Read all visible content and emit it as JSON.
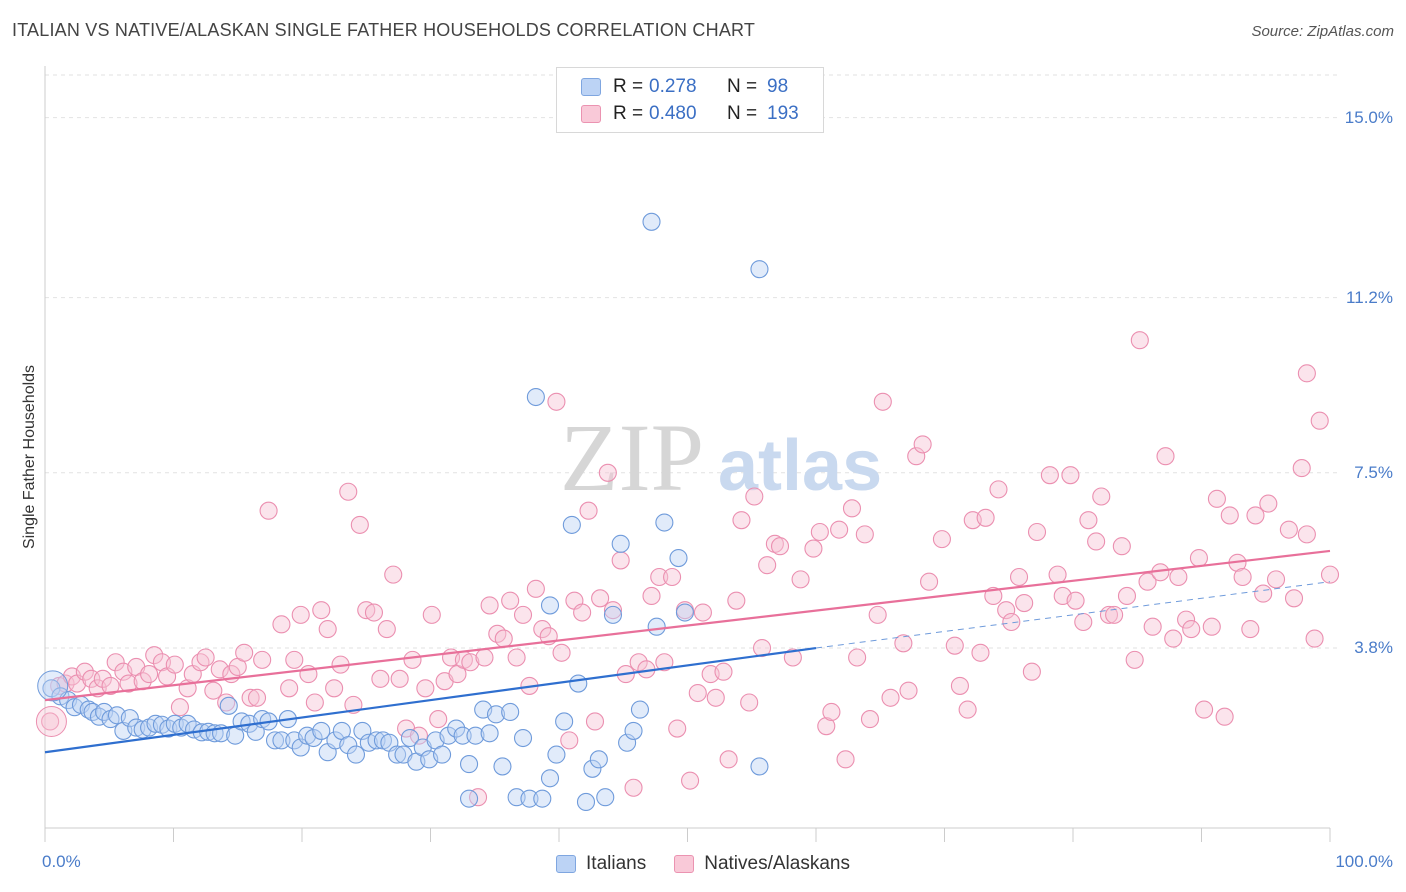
{
  "title": "ITALIAN VS NATIVE/ALASKAN SINGLE FATHER HOUSEHOLDS CORRELATION CHART",
  "source": "Source: ZipAtlas.com",
  "watermark": {
    "zip": "ZIP",
    "atlas": "atlas"
  },
  "stats": {
    "italians": {
      "r_label": "R =",
      "r": "0.278",
      "n_label": "N =",
      "n": "98"
    },
    "natives": {
      "r_label": "R =",
      "r": "0.480",
      "n_label": "N =",
      "n": "193"
    }
  },
  "legend": {
    "italians": "Italians",
    "natives": "Natives/Alaskans"
  },
  "colors": {
    "italians": "#5b8fd9",
    "natives": "#eb7aa1",
    "tick_label": "#4a7cc9"
  },
  "chart_data": {
    "type": "scatter",
    "title": "ITALIAN VS NATIVE/ALASKAN SINGLE FATHER HOUSEHOLDS CORRELATION CHART",
    "xlabel": "",
    "ylabel": "Single Father Households",
    "xlim": [
      0,
      100
    ],
    "ylim": [
      0,
      15.9
    ],
    "x_tick_labels": [
      "0.0%",
      "100.0%"
    ],
    "y_ticks": [
      3.8,
      7.5,
      11.2,
      15.0
    ],
    "y_tick_labels": [
      "3.8%",
      "7.5%",
      "11.2%",
      "15.0%"
    ],
    "grid": true,
    "legend_position": "bottom-center",
    "series": [
      {
        "name": "Italians",
        "color": "#5b8fd9",
        "trend": {
          "x": [
            0,
            60
          ],
          "y": [
            1.6,
            3.8
          ]
        },
        "trend_extension": {
          "x": [
            60,
            100
          ],
          "y": [
            3.8,
            5.2
          ]
        },
        "points": [
          [
            0.5,
            2.95
          ],
          [
            1.2,
            2.78
          ],
          [
            1.8,
            2.7
          ],
          [
            2.3,
            2.55
          ],
          [
            2.8,
            2.6
          ],
          [
            3.4,
            2.5
          ],
          [
            3.7,
            2.45
          ],
          [
            4.2,
            2.35
          ],
          [
            4.6,
            2.45
          ],
          [
            5.1,
            2.3
          ],
          [
            5.6,
            2.38
          ],
          [
            6.1,
            2.05
          ],
          [
            6.6,
            2.32
          ],
          [
            7.1,
            2.12
          ],
          [
            7.6,
            2.08
          ],
          [
            8.1,
            2.12
          ],
          [
            8.6,
            2.2
          ],
          [
            9.1,
            2.18
          ],
          [
            9.6,
            2.1
          ],
          [
            10.1,
            2.2
          ],
          [
            10.6,
            2.12
          ],
          [
            11.1,
            2.2
          ],
          [
            11.6,
            2.08
          ],
          [
            12.2,
            2.02
          ],
          [
            12.7,
            2.03
          ],
          [
            13.2,
            2.0
          ],
          [
            13.7,
            2.0
          ],
          [
            14.3,
            2.58
          ],
          [
            14.8,
            1.95
          ],
          [
            15.3,
            2.25
          ],
          [
            15.9,
            2.2
          ],
          [
            16.4,
            2.03
          ],
          [
            16.9,
            2.3
          ],
          [
            17.4,
            2.25
          ],
          [
            17.9,
            1.85
          ],
          [
            18.4,
            1.85
          ],
          [
            18.9,
            2.3
          ],
          [
            19.4,
            1.85
          ],
          [
            19.9,
            1.7
          ],
          [
            20.4,
            1.95
          ],
          [
            20.9,
            1.9
          ],
          [
            21.5,
            2.05
          ],
          [
            22.0,
            1.6
          ],
          [
            22.6,
            1.85
          ],
          [
            23.1,
            2.05
          ],
          [
            23.6,
            1.75
          ],
          [
            24.2,
            1.55
          ],
          [
            24.7,
            2.05
          ],
          [
            25.2,
            1.8
          ],
          [
            25.8,
            1.85
          ],
          [
            26.3,
            1.85
          ],
          [
            26.8,
            1.8
          ],
          [
            27.4,
            1.55
          ],
          [
            27.9,
            1.55
          ],
          [
            28.4,
            1.9
          ],
          [
            28.9,
            1.4
          ],
          [
            29.4,
            1.7
          ],
          [
            29.9,
            1.45
          ],
          [
            30.4,
            1.85
          ],
          [
            30.9,
            1.55
          ],
          [
            31.4,
            1.95
          ],
          [
            32.0,
            2.1
          ],
          [
            32.5,
            1.95
          ],
          [
            33.0,
            0.62
          ],
          [
            33.0,
            1.35
          ],
          [
            33.5,
            1.95
          ],
          [
            34.1,
            2.5
          ],
          [
            34.6,
            2.0
          ],
          [
            35.1,
            2.4
          ],
          [
            35.6,
            1.3
          ],
          [
            36.2,
            2.45
          ],
          [
            36.7,
            0.65
          ],
          [
            37.2,
            1.9
          ],
          [
            37.7,
            0.62
          ],
          [
            38.2,
            9.1
          ],
          [
            38.7,
            0.62
          ],
          [
            39.3,
            4.7
          ],
          [
            39.3,
            1.05
          ],
          [
            39.8,
            1.55
          ],
          [
            40.4,
            2.25
          ],
          [
            41.0,
            6.4
          ],
          [
            41.5,
            3.05
          ],
          [
            42.1,
            0.55
          ],
          [
            42.6,
            1.25
          ],
          [
            43.1,
            1.45
          ],
          [
            43.6,
            0.65
          ],
          [
            44.2,
            4.5
          ],
          [
            44.8,
            6.0
          ],
          [
            45.3,
            1.8
          ],
          [
            45.8,
            2.05
          ],
          [
            46.3,
            2.5
          ],
          [
            47.2,
            12.8
          ],
          [
            47.6,
            4.25
          ],
          [
            48.2,
            6.45
          ],
          [
            49.3,
            5.7
          ],
          [
            49.8,
            4.55
          ],
          [
            55.6,
            11.8
          ],
          [
            55.6,
            1.3
          ]
        ],
        "big_point": [
          0.6,
          3.0
        ]
      },
      {
        "name": "Natives/Alaskans",
        "color": "#eb7aa1",
        "trend": {
          "x": [
            0,
            100
          ],
          "y": [
            2.7,
            5.85
          ]
        },
        "points": [
          [
            0.4,
            2.25
          ],
          [
            1.1,
            3.0
          ],
          [
            1.6,
            3.05
          ],
          [
            2.1,
            3.2
          ],
          [
            2.5,
            3.05
          ],
          [
            3.1,
            3.3
          ],
          [
            3.6,
            3.15
          ],
          [
            4.1,
            2.95
          ],
          [
            4.5,
            3.15
          ],
          [
            5.1,
            3.0
          ],
          [
            5.5,
            3.5
          ],
          [
            6.1,
            3.3
          ],
          [
            6.5,
            3.05
          ],
          [
            7.1,
            3.4
          ],
          [
            7.6,
            3.1
          ],
          [
            8.1,
            3.25
          ],
          [
            8.5,
            3.65
          ],
          [
            9.1,
            3.5
          ],
          [
            9.5,
            3.2
          ],
          [
            10.1,
            3.45
          ],
          [
            10.5,
            2.55
          ],
          [
            11.1,
            2.95
          ],
          [
            11.5,
            3.25
          ],
          [
            12.1,
            3.5
          ],
          [
            12.5,
            3.6
          ],
          [
            13.1,
            2.9
          ],
          [
            13.6,
            3.35
          ],
          [
            14.1,
            2.65
          ],
          [
            14.5,
            3.25
          ],
          [
            15.0,
            3.4
          ],
          [
            15.5,
            3.7
          ],
          [
            16.0,
            2.75
          ],
          [
            16.5,
            2.75
          ],
          [
            16.9,
            3.55
          ],
          [
            17.4,
            6.7
          ],
          [
            18.4,
            4.3
          ],
          [
            19.0,
            2.95
          ],
          [
            19.4,
            3.55
          ],
          [
            19.9,
            4.5
          ],
          [
            20.5,
            3.25
          ],
          [
            21.0,
            2.65
          ],
          [
            21.5,
            4.6
          ],
          [
            22.0,
            4.2
          ],
          [
            22.5,
            2.95
          ],
          [
            23.0,
            3.45
          ],
          [
            23.6,
            7.1
          ],
          [
            24.0,
            2.6
          ],
          [
            24.5,
            6.4
          ],
          [
            25.0,
            4.6
          ],
          [
            25.6,
            4.55
          ],
          [
            26.1,
            3.15
          ],
          [
            26.6,
            4.2
          ],
          [
            27.1,
            5.35
          ],
          [
            27.6,
            3.15
          ],
          [
            28.1,
            2.1
          ],
          [
            28.6,
            3.55
          ],
          [
            29.1,
            1.95
          ],
          [
            29.6,
            2.95
          ],
          [
            30.1,
            4.5
          ],
          [
            30.6,
            2.3
          ],
          [
            31.1,
            3.1
          ],
          [
            31.6,
            3.6
          ],
          [
            32.1,
            3.25
          ],
          [
            32.6,
            3.55
          ],
          [
            33.1,
            3.5
          ],
          [
            33.7,
            0.65
          ],
          [
            34.2,
            3.6
          ],
          [
            34.6,
            4.7
          ],
          [
            35.2,
            4.1
          ],
          [
            35.7,
            4.0
          ],
          [
            36.2,
            4.8
          ],
          [
            36.7,
            3.6
          ],
          [
            37.2,
            4.5
          ],
          [
            37.7,
            3.0
          ],
          [
            38.2,
            5.05
          ],
          [
            38.7,
            4.2
          ],
          [
            39.2,
            4.05
          ],
          [
            39.8,
            9.0
          ],
          [
            40.2,
            3.7
          ],
          [
            40.8,
            1.85
          ],
          [
            41.2,
            4.8
          ],
          [
            41.8,
            4.55
          ],
          [
            42.3,
            6.7
          ],
          [
            42.8,
            2.25
          ],
          [
            43.2,
            4.85
          ],
          [
            43.8,
            7.5
          ],
          [
            44.2,
            4.6
          ],
          [
            44.8,
            5.65
          ],
          [
            45.2,
            3.25
          ],
          [
            45.8,
            0.85
          ],
          [
            46.2,
            3.5
          ],
          [
            46.8,
            3.35
          ],
          [
            47.2,
            4.9
          ],
          [
            47.8,
            5.3
          ],
          [
            48.2,
            3.5
          ],
          [
            48.8,
            5.3
          ],
          [
            49.2,
            2.1
          ],
          [
            49.8,
            4.6
          ],
          [
            50.2,
            1.0
          ],
          [
            50.8,
            2.85
          ],
          [
            51.2,
            4.55
          ],
          [
            51.8,
            3.25
          ],
          [
            52.2,
            2.75
          ],
          [
            52.8,
            3.3
          ],
          [
            53.2,
            1.45
          ],
          [
            53.8,
            4.8
          ],
          [
            54.2,
            6.5
          ],
          [
            54.8,
            2.65
          ],
          [
            55.2,
            7.0
          ],
          [
            55.8,
            3.8
          ],
          [
            56.2,
            5.55
          ],
          [
            56.8,
            6.0
          ],
          [
            57.2,
            5.95
          ],
          [
            58.2,
            3.6
          ],
          [
            58.8,
            5.25
          ],
          [
            59.8,
            5.9
          ],
          [
            60.3,
            6.25
          ],
          [
            60.8,
            2.15
          ],
          [
            61.2,
            2.45
          ],
          [
            61.8,
            6.3
          ],
          [
            62.3,
            1.45
          ],
          [
            62.8,
            6.75
          ],
          [
            63.2,
            3.6
          ],
          [
            63.8,
            6.2
          ],
          [
            64.2,
            2.3
          ],
          [
            64.8,
            4.5
          ],
          [
            65.2,
            9.0
          ],
          [
            65.8,
            2.75
          ],
          [
            66.8,
            3.9
          ],
          [
            67.2,
            2.9
          ],
          [
            67.8,
            7.85
          ],
          [
            68.3,
            8.1
          ],
          [
            68.8,
            5.2
          ],
          [
            69.8,
            6.1
          ],
          [
            70.8,
            3.85
          ],
          [
            71.2,
            3.0
          ],
          [
            71.8,
            2.5
          ],
          [
            72.2,
            6.5
          ],
          [
            72.8,
            3.7
          ],
          [
            73.2,
            6.55
          ],
          [
            73.8,
            4.9
          ],
          [
            74.2,
            7.15
          ],
          [
            74.8,
            4.6
          ],
          [
            75.2,
            4.35
          ],
          [
            75.8,
            5.3
          ],
          [
            76.2,
            4.75
          ],
          [
            76.8,
            3.3
          ],
          [
            77.2,
            6.25
          ],
          [
            78.2,
            7.45
          ],
          [
            78.8,
            5.35
          ],
          [
            79.2,
            4.9
          ],
          [
            79.8,
            7.45
          ],
          [
            80.2,
            4.8
          ],
          [
            80.8,
            4.35
          ],
          [
            81.2,
            6.5
          ],
          [
            81.8,
            6.05
          ],
          [
            82.2,
            7.0
          ],
          [
            82.8,
            4.5
          ],
          [
            83.2,
            4.5
          ],
          [
            83.8,
            5.95
          ],
          [
            84.2,
            4.9
          ],
          [
            84.8,
            3.55
          ],
          [
            85.2,
            10.3
          ],
          [
            85.8,
            5.2
          ],
          [
            86.2,
            4.25
          ],
          [
            86.8,
            5.4
          ],
          [
            87.2,
            7.85
          ],
          [
            87.8,
            4.0
          ],
          [
            88.2,
            5.3
          ],
          [
            88.8,
            4.4
          ],
          [
            89.2,
            4.2
          ],
          [
            89.8,
            5.7
          ],
          [
            90.2,
            2.5
          ],
          [
            90.8,
            4.25
          ],
          [
            91.2,
            6.95
          ],
          [
            91.8,
            2.35
          ],
          [
            92.2,
            6.6
          ],
          [
            92.8,
            5.6
          ],
          [
            93.2,
            5.3
          ],
          [
            93.8,
            4.2
          ],
          [
            94.2,
            6.6
          ],
          [
            94.8,
            4.95
          ],
          [
            95.2,
            6.85
          ],
          [
            95.8,
            5.25
          ],
          [
            96.8,
            6.3
          ],
          [
            97.2,
            4.85
          ],
          [
            97.8,
            7.6
          ],
          [
            98.2,
            6.2
          ],
          [
            98.8,
            4.0
          ],
          [
            99.2,
            8.6
          ],
          [
            100.0,
            5.35
          ],
          [
            98.2,
            9.6
          ]
        ],
        "big_point": [
          0.5,
          2.25
        ]
      }
    ]
  }
}
